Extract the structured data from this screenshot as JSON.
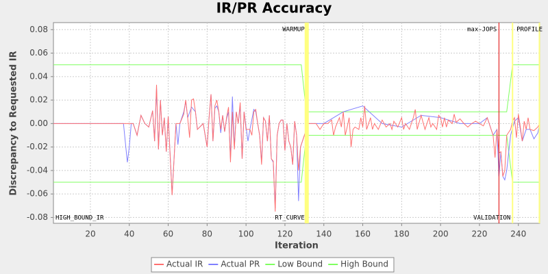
{
  "chart_data": {
    "type": "line",
    "title": "IR/PR Accuracy",
    "x_label": "Iteration",
    "y_label": "Discrepancy to Requested IR",
    "xlim": [
      1,
      251
    ],
    "ylim": [
      -0.085,
      0.086
    ],
    "xticks": [
      20,
      40,
      60,
      80,
      100,
      120,
      140,
      160,
      180,
      200,
      220,
      240
    ],
    "yticks": [
      -0.08,
      -0.06,
      -0.04,
      -0.02,
      {
        "value": 0,
        "label": "0.00"
      },
      0.02,
      0.04,
      0.06,
      0.08
    ],
    "grid": true,
    "legend": "bottom",
    "series": [
      {
        "name": "Actual IR",
        "color": "#ff6f6f",
        "x": [
          1,
          37,
          40,
          42,
          44,
          46,
          48,
          50,
          52,
          53,
          54,
          55,
          56,
          57,
          58,
          59,
          60,
          62,
          64,
          66,
          68,
          69,
          70,
          71,
          72,
          73,
          74,
          75,
          78,
          80,
          81,
          82,
          83,
          84,
          85,
          86,
          87,
          88,
          89,
          90,
          91,
          92,
          93,
          94,
          95,
          96,
          97,
          98,
          99,
          100,
          102,
          103,
          104,
          105,
          106,
          107,
          108,
          109,
          110,
          111,
          112,
          113,
          114,
          115,
          116,
          117,
          118,
          119,
          120,
          121,
          122,
          123,
          124,
          125,
          126,
          127,
          128,
          130,
          132,
          134,
          136,
          138,
          140,
          142,
          144,
          145,
          146,
          148,
          149,
          150,
          151,
          152,
          153,
          154,
          155,
          156,
          158,
          159,
          160,
          161,
          162,
          164,
          165,
          166,
          168,
          170,
          172,
          174,
          175,
          176,
          178,
          180,
          181,
          182,
          184,
          186,
          187,
          188,
          190,
          192,
          194,
          195,
          196,
          198,
          199,
          200,
          201,
          202,
          203,
          204,
          206,
          207,
          208,
          210,
          212,
          214,
          216,
          218,
          220,
          222,
          224,
          225,
          227,
          228,
          229,
          230,
          231,
          232,
          233,
          234,
          236,
          237,
          238,
          239,
          240,
          241,
          242,
          243,
          244,
          245,
          246,
          248,
          250,
          251
        ],
        "values": [
          0,
          0,
          0,
          0,
          -0.01,
          0.007,
          0,
          -0.003,
          0.011,
          -0.015,
          0.033,
          -0.022,
          0.02,
          -0.01,
          0.005,
          -0.024,
          0.006,
          -0.061,
          0,
          0,
          0.008,
          0.02,
          0.005,
          -0.012,
          0.02,
          0.021,
          0.01,
          -0.005,
          0,
          -0.02,
          0.005,
          0.025,
          -0.015,
          0.015,
          0.02,
          0.01,
          -0.005,
          0.007,
          -0.007,
          0.005,
          0.014,
          -0.033,
          0.01,
          -0.022,
          0.01,
          0,
          0.018,
          -0.03,
          0.01,
          -0.005,
          -0.005,
          -0.01,
          0.01,
          0.012,
          0,
          -0.01,
          -0.035,
          0.005,
          0.002,
          -0.015,
          0.007,
          -0.03,
          -0.032,
          -0.075,
          -0.01,
          0,
          0.003,
          0.003,
          -0.023,
          0,
          -0.015,
          -0.02,
          -0.035,
          0.002,
          -0.01,
          -0.04,
          -0.02,
          -0.01,
          0,
          0,
          0,
          -0.005,
          0,
          0,
          0.003,
          -0.01,
          -0.003,
          0.005,
          -0.003,
          0.01,
          -0.01,
          -0.003,
          0.005,
          -0.02,
          -0.005,
          -0.003,
          -0.005,
          0.005,
          -0.003,
          0.015,
          -0.005,
          0.005,
          -0.005,
          0,
          -0.005,
          0.003,
          -0.003,
          0,
          -0.005,
          0.002,
          -0.003,
          0.005,
          -0.005,
          0,
          -0.005,
          0.005,
          0.012,
          -0.005,
          0.007,
          -0.005,
          0.005,
          -0.003,
          0,
          -0.005,
          0.007,
          0.005,
          -0.003,
          0.005,
          -0.003,
          0.003,
          0,
          0.008,
          0.001,
          0.004,
          0,
          -0.003,
          0,
          0.002,
          0,
          -0.002,
          0.005,
          0,
          -0.01,
          -0.029,
          -0.005,
          -0.025,
          -0.024,
          -0.045,
          -0.04,
          -0.01,
          -0.005,
          0.002,
          0.005,
          -0.012,
          0.008,
          -0.003,
          -0.015,
          0.002,
          -0.005,
          0.005,
          -0.005,
          -0.006,
          -0.003,
          0
        ]
      },
      {
        "name": "Actual PR",
        "color": "#7f7fff",
        "x": [
          1,
          37,
          39,
          40,
          41,
          42,
          44,
          46,
          48,
          50,
          52,
          53,
          54,
          55,
          56,
          57,
          58,
          59,
          60,
          62,
          64,
          65,
          66,
          68,
          69,
          70,
          72,
          74,
          75,
          78,
          80,
          81,
          82,
          83,
          84,
          85,
          86,
          87,
          88,
          89,
          90,
          91,
          92,
          93,
          94,
          95,
          96,
          97,
          98,
          99,
          100,
          101,
          102,
          104,
          105,
          106,
          107,
          108,
          109,
          110,
          111,
          112,
          113,
          114,
          115,
          116,
          117,
          118,
          119,
          120,
          121,
          122,
          123,
          124,
          125,
          126,
          127,
          128,
          130,
          132,
          140,
          150,
          160,
          170,
          180,
          190,
          200,
          210,
          220,
          224,
          227,
          229,
          230,
          231,
          232,
          233,
          234,
          236,
          238,
          240,
          242,
          244,
          246,
          248,
          250,
          251
        ],
        "values": [
          0,
          0,
          -0.033,
          -0.02,
          0,
          0,
          -0.01,
          0.007,
          0,
          -0.003,
          0.011,
          -0.015,
          0.03,
          -0.022,
          0.02,
          -0.01,
          0.005,
          -0.024,
          0.006,
          -0.06,
          0,
          -0.018,
          0,
          0.01,
          0.019,
          0.005,
          0.014,
          0.01,
          -0.005,
          0,
          -0.02,
          0.005,
          0.025,
          -0.015,
          0.013,
          0.015,
          0.01,
          -0.008,
          0.007,
          -0.007,
          0.004,
          0.01,
          -0.03,
          0.023,
          -0.02,
          0.01,
          0,
          0.015,
          -0.03,
          0.01,
          -0.003,
          -0.015,
          -0.005,
          0.012,
          0.01,
          0,
          -0.01,
          -0.033,
          0.005,
          0.002,
          -0.015,
          0.007,
          -0.03,
          -0.033,
          -0.072,
          -0.01,
          0,
          0.003,
          0.003,
          -0.023,
          0,
          -0.015,
          -0.02,
          -0.035,
          0.002,
          -0.01,
          -0.066,
          -0.02,
          -0.01,
          0,
          0,
          0.01,
          0.015,
          0,
          -0.003,
          0.007,
          0.005,
          0,
          0,
          0.005,
          -0.01,
          -0.005,
          -0.045,
          -0.024,
          -0.045,
          -0.048,
          -0.04,
          -0.01,
          0.002,
          0.005,
          -0.015,
          -0.005,
          -0.005,
          -0.013,
          -0.008,
          0
        ]
      },
      {
        "name": "Low Bound",
        "color": "#7fff5f",
        "x": [
          1,
          128.4,
          131,
          234,
          237,
          251
        ],
        "values": [
          -0.05,
          -0.05,
          -0.01,
          -0.01,
          -0.05,
          -0.05
        ]
      },
      {
        "name": "High Bound",
        "color": "#7fff5f",
        "x": [
          1,
          128.4,
          131,
          234,
          237,
          251
        ],
        "values": [
          0.05,
          0.05,
          0.01,
          0.01,
          0.05,
          0.05
        ]
      }
    ],
    "markers": [
      {
        "x": 131.2,
        "color": "#ffff80",
        "width": 6
      },
      {
        "x": 230,
        "color": "#e00000",
        "width": 1
      },
      {
        "x": 237,
        "color": "#ffff80",
        "width": 2
      },
      {
        "x": 250.8,
        "color": "#ffff80",
        "width": 2
      }
    ],
    "annotations": [
      {
        "text": "WARMUP",
        "x": 131.2,
        "row": "top",
        "align": "end"
      },
      {
        "text": "max-JOPS",
        "x": 230,
        "row": "top",
        "align": "end"
      },
      {
        "text": "PROFILE",
        "x": 238,
        "row": "top",
        "align": "start"
      },
      {
        "text": "HIGH_BOUND_IR",
        "x": 1,
        "row": "bottom",
        "align": "start"
      },
      {
        "text": "RT_CURVE",
        "x": 131.2,
        "row": "bottom",
        "align": "end"
      },
      {
        "text": "VALIDATION",
        "x": 237,
        "row": "bottom",
        "align": "end"
      }
    ]
  }
}
